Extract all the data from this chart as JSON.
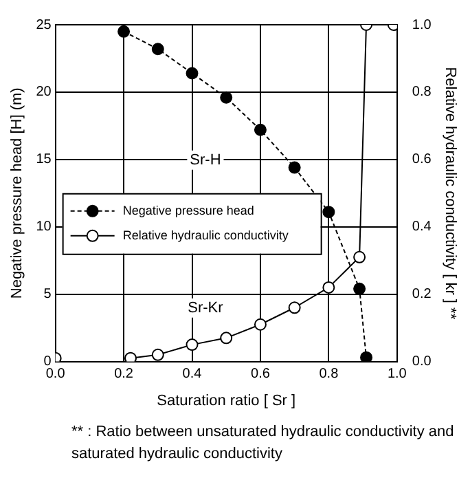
{
  "chart_data": {
    "type": "line",
    "xlabel": "Saturation ratio [ Sr ]",
    "ylabel": "Negative pressure head [H] (m)",
    "y2label": "Relative hydraulic conductivity [ kr ] **",
    "xlim": [
      0,
      1
    ],
    "xticks": [
      {
        "value": 0,
        "label": "0.0"
      },
      {
        "value": 0.2,
        "label": "0.2"
      },
      {
        "value": 0.4,
        "label": "0.4"
      },
      {
        "value": 0.6,
        "label": "0.6"
      },
      {
        "value": 0.8,
        "label": "0.8"
      },
      {
        "value": 1,
        "label": "1.0"
      }
    ],
    "ylim": [
      0,
      25
    ],
    "yticks": [
      0,
      5,
      10,
      15,
      20,
      25
    ],
    "y2lim": [
      0,
      1
    ],
    "y2ticks": [
      {
        "value": 0,
        "label": "0.0"
      },
      {
        "value": 0.2,
        "label": "0.2"
      },
      {
        "value": 0.4,
        "label": "0.4"
      },
      {
        "value": 0.6,
        "label": "0.6"
      },
      {
        "value": 0.8,
        "label": "0.8"
      },
      {
        "value": 1,
        "label": "1.0"
      }
    ],
    "series": [
      {
        "name": "Negative pressure head",
        "color": "#000000",
        "line_style": "dashed",
        "x": [
          0.2,
          0.3,
          0.4,
          0.5,
          0.6,
          0.7,
          0.8,
          0.89,
          0.91
        ],
        "values": [
          24.5,
          23.2,
          21.4,
          19.6,
          17.2,
          14.4,
          11.1,
          5.4,
          0.3
        ]
      },
      {
        "name": "Relative hydraulic conductivity",
        "color": "#000000",
        "line_style": "solid",
        "axis": "y2",
        "x": [
          0.22,
          0.3,
          0.4,
          0.5,
          0.6,
          0.7,
          0.8,
          0.89,
          0.91,
          0.99
        ],
        "values": [
          0.01,
          0.02,
          0.05,
          0.07,
          0.11,
          0.16,
          0.22,
          0.31,
          1,
          1
        ]
      },
      {
        "type": "scatter",
        "color": "#000000",
        "axis": "y2",
        "x": [
          0
        ],
        "values": [
          0.01
        ]
      }
    ],
    "marker": "circle",
    "grid": true,
    "legend": "left",
    "annotations": [
      "Sr-H",
      "Sr-Kr",
      "** : Ratio between unsaturated hydraulic conductivity and saturated hydraulic conductivity"
    ]
  }
}
